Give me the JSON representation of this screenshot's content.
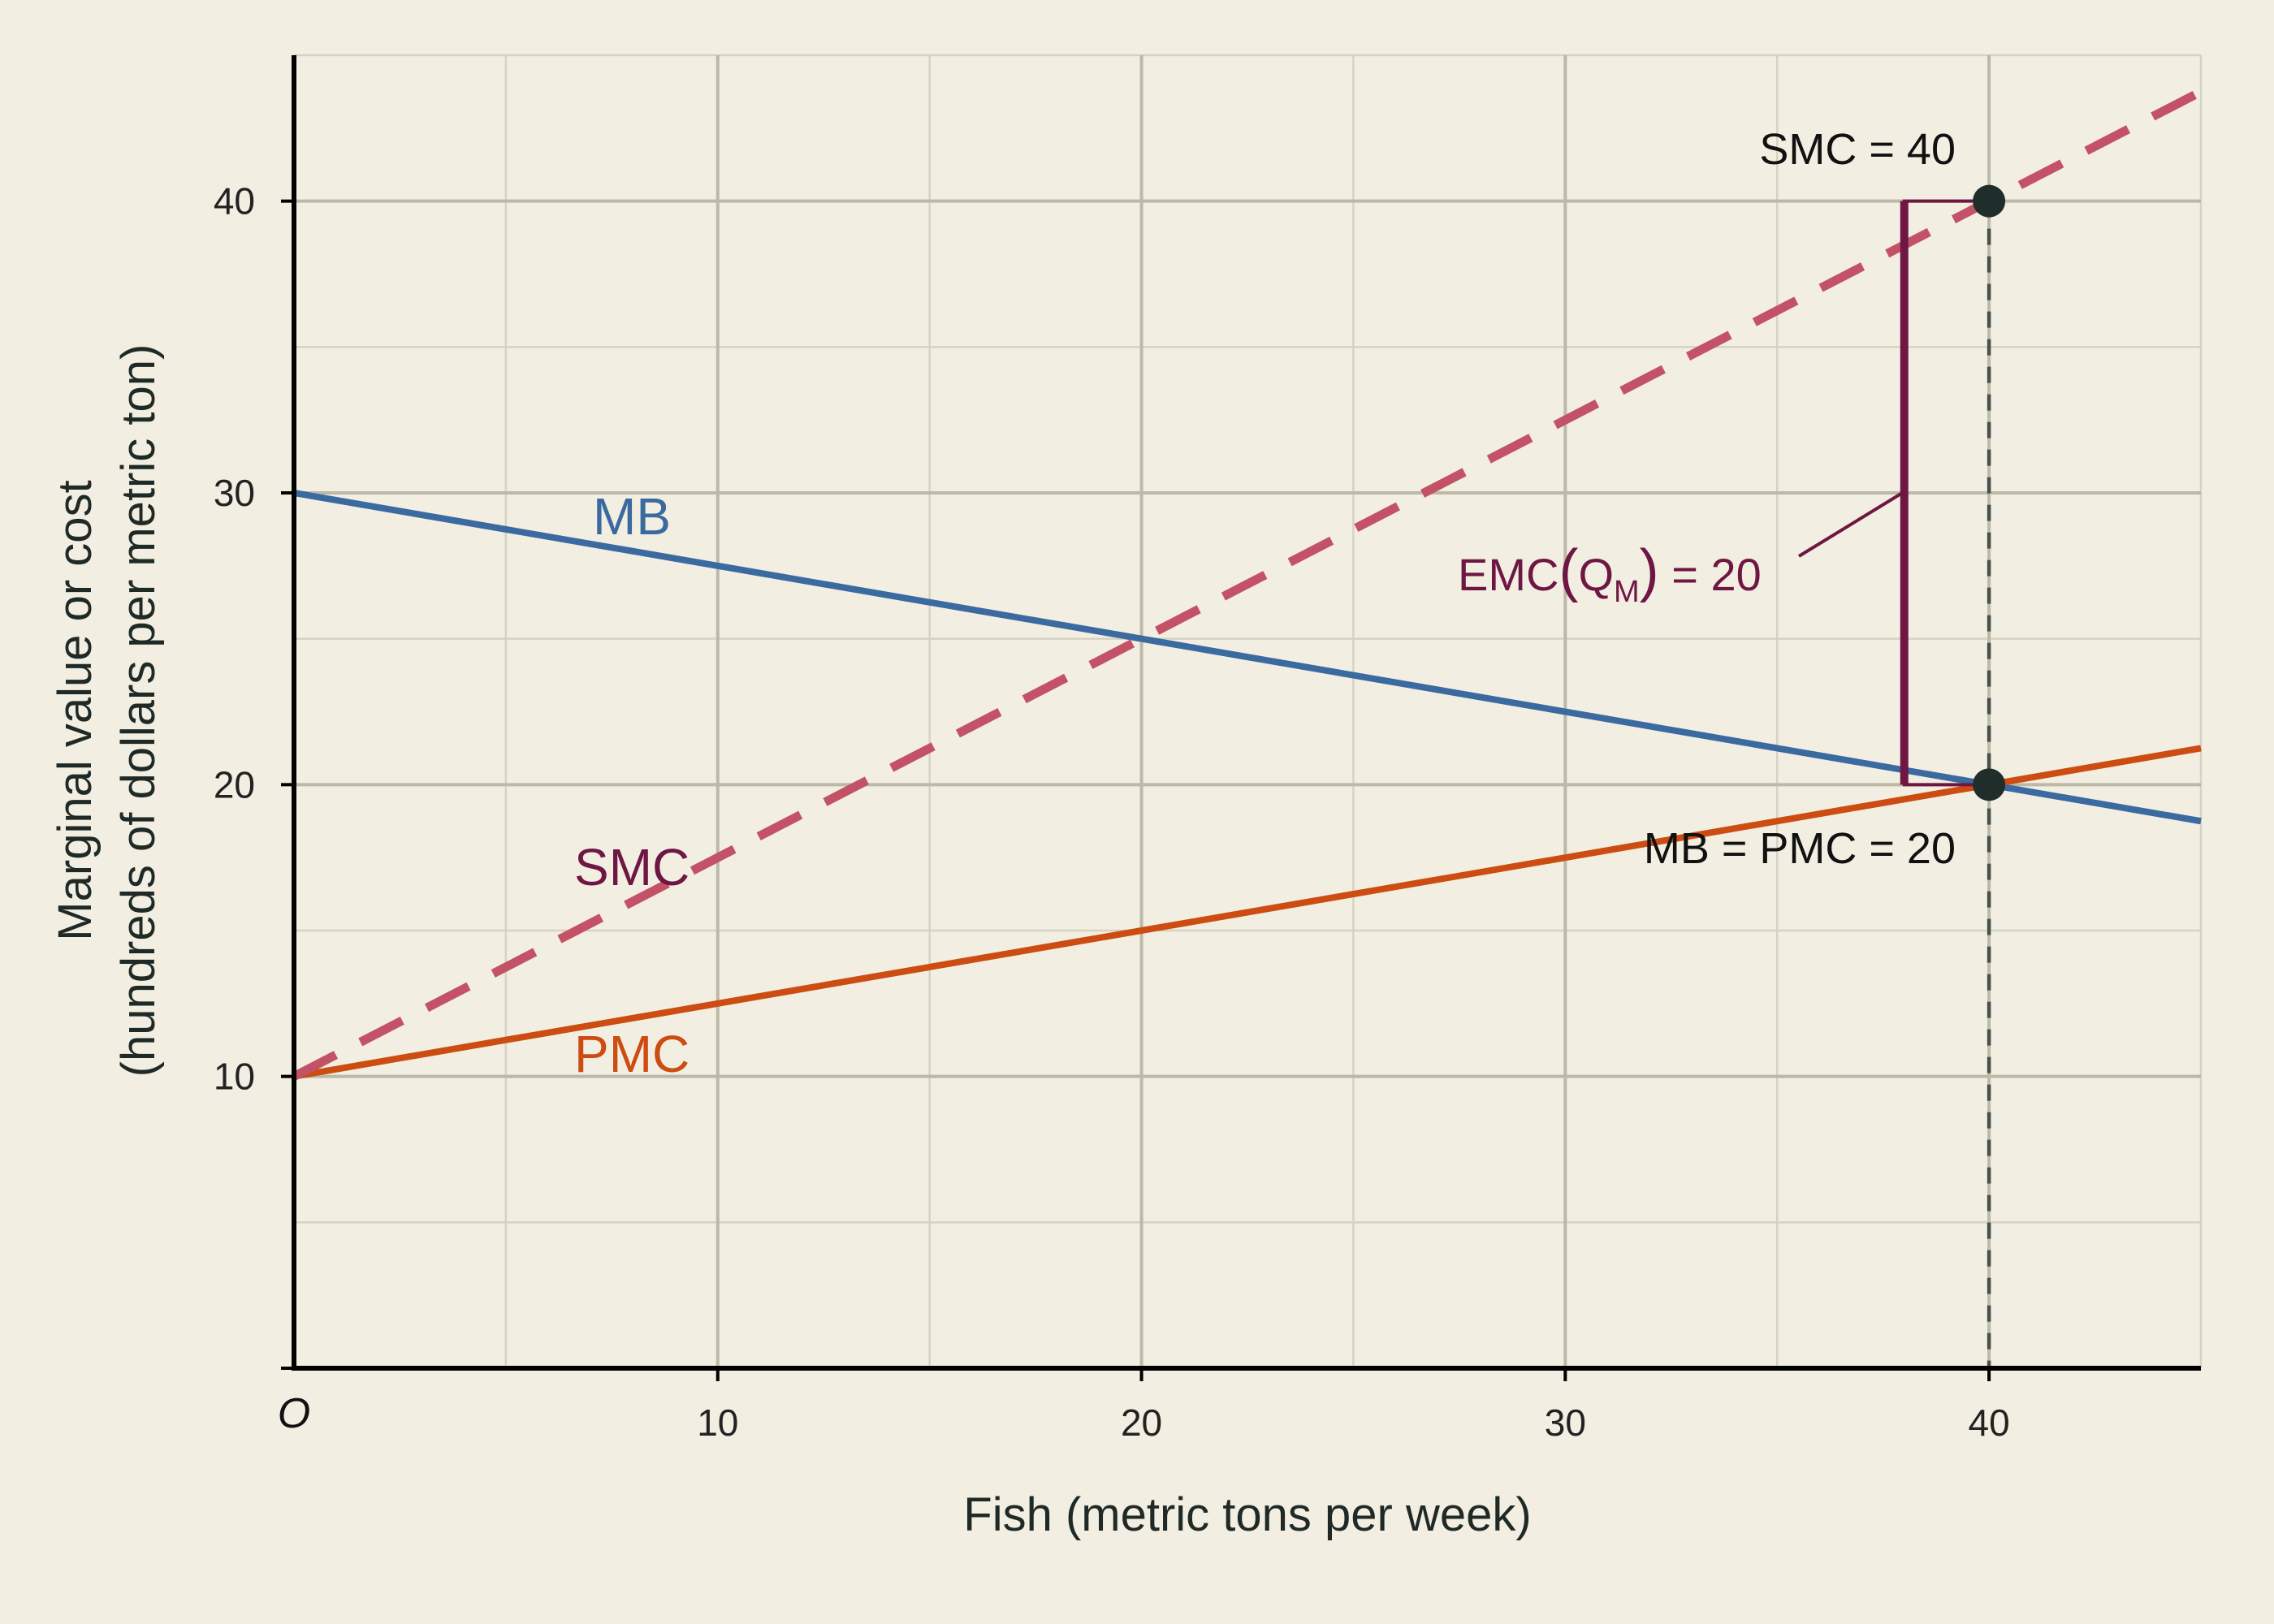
{
  "chart_data": {
    "type": "line",
    "title": "",
    "xlabel": "Fish (metric tons per week)",
    "ylabel_line1": "Marginal value or cost",
    "ylabel_line2": "(hundreds of dollars per metric ton)",
    "origin_label": "O",
    "xlim": [
      0,
      45
    ],
    "ylim": [
      0,
      45
    ],
    "x_ticks": [
      10,
      20,
      30,
      40
    ],
    "y_ticks": [
      10,
      20,
      30,
      40
    ],
    "grid": true,
    "series": [
      {
        "name": "MB",
        "color": "#3b6aa0",
        "dashed": false,
        "x": [
          0,
          45
        ],
        "y": [
          30,
          18.75
        ]
      },
      {
        "name": "PMC",
        "color": "#cc4c12",
        "dashed": false,
        "x": [
          0,
          45
        ],
        "y": [
          10,
          21.25
        ]
      },
      {
        "name": "SMC",
        "color": "#c35266",
        "dashed": true,
        "x": [
          0,
          45
        ],
        "y": [
          10,
          43.75
        ]
      }
    ],
    "series_label_colors": {
      "MB": "#3b6aa0",
      "PMC": "#cc4c12",
      "SMC": "#6e1742"
    },
    "points": [
      {
        "x": 40,
        "y": 40
      },
      {
        "x": 40,
        "y": 20
      }
    ],
    "guide_x": 40,
    "bracket": {
      "x": 38,
      "y_low": 20,
      "y_high": 40,
      "color": "#6e1742"
    },
    "annotations": {
      "smc_point": "SMC = 40",
      "mb_pmc_point": "MB = PMC = 20",
      "emc_prefix": "EMC",
      "emc_open": "(",
      "emc_q": "Q",
      "emc_sub": "M",
      "emc_close": ")",
      "emc_suffix": " = 20"
    }
  }
}
